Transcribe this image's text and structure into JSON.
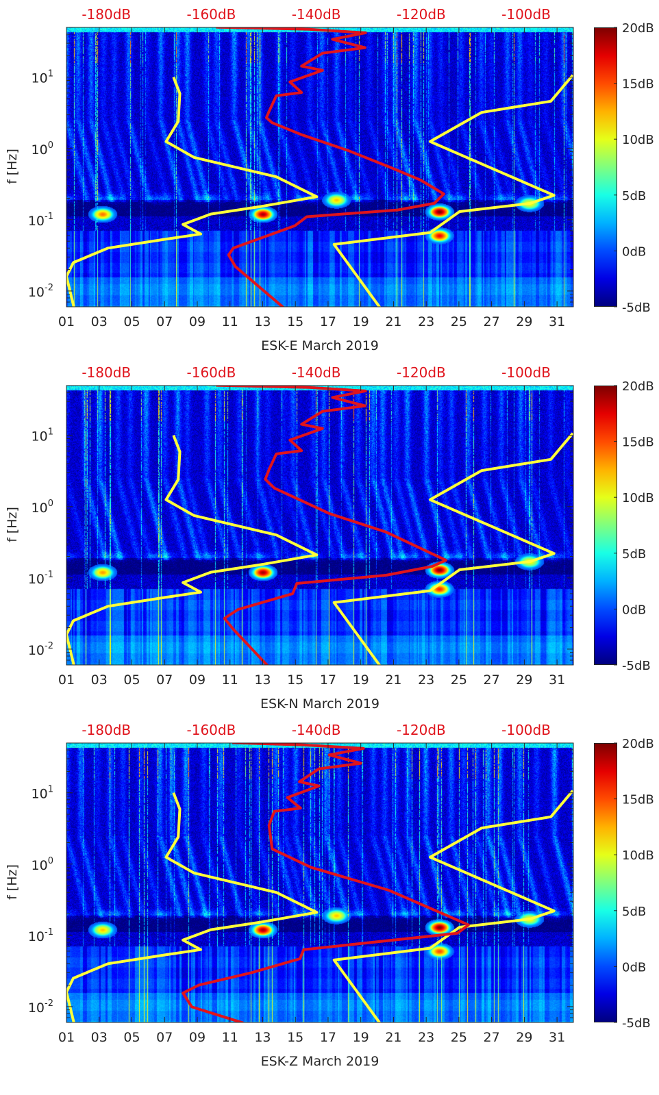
{
  "colors": {
    "low_noise_model": "#ffff3a",
    "high_noise_model": "#ffff3a",
    "station_psd": "#e0141c",
    "top_axis_labels": "#e0141c",
    "axis": "#262626"
  },
  "chart_data": [
    {
      "type": "heatmap",
      "title": "ESK-E March 2019",
      "xlabel": "ESK-E March 2019",
      "ylabel": "f [Hz]",
      "xlim": [
        1,
        32
      ],
      "xtick_values": [
        1,
        3,
        5,
        7,
        9,
        11,
        13,
        15,
        17,
        19,
        21,
        23,
        25,
        27,
        29,
        31
      ],
      "xtick_labels": [
        "01",
        "03",
        "05",
        "07",
        "09",
        "11",
        "13",
        "15",
        "17",
        "19",
        "21",
        "23",
        "25",
        "27",
        "29",
        "31"
      ],
      "yscale": "log",
      "ylim": [
        0.006,
        50
      ],
      "ytick_values": [
        0.01,
        0.1,
        1,
        10
      ],
      "ytick_labels": [
        {
          "base": "10",
          "exp": "-2"
        },
        {
          "base": "10",
          "exp": "-1"
        },
        {
          "base": "10",
          "exp": "0"
        },
        {
          "base": "10",
          "exp": "1"
        }
      ],
      "top_xlim": [
        -187.6,
        -91.0
      ],
      "top_tick_values": [
        -180,
        -160,
        -140,
        -120,
        -100
      ],
      "top_tick_labels": [
        "-180dB",
        "-160dB",
        "-140dB",
        "-120dB",
        "-100dB"
      ],
      "colorbar": {
        "range": [
          -5,
          20
        ],
        "colormap": "jet",
        "tick_values": [
          20,
          15,
          10,
          5,
          0,
          -5
        ],
        "tick_labels": [
          "20dB",
          "15dB",
          "10dB",
          "5dB",
          "0dB",
          "-5dB"
        ]
      },
      "hot_spots": [
        [
          13,
          0.12,
          19
        ],
        [
          23.8,
          0.13,
          20
        ],
        [
          23.8,
          0.06,
          17
        ],
        [
          3.2,
          0.12,
          14
        ],
        [
          17.5,
          0.19,
          12
        ],
        [
          29.3,
          0.17,
          11
        ]
      ],
      "lines": {
        "low_noise_model": [
          [
            -167.2,
            10
          ],
          [
            -166.0,
            5.9
          ],
          [
            -166.3,
            2.4
          ],
          [
            -168.6,
            1.25
          ],
          [
            -163.3,
            0.75
          ],
          [
            -147.6,
            0.4
          ],
          [
            -139.9,
            0.21
          ],
          [
            -150.6,
            0.153
          ],
          [
            -160.1,
            0.12
          ],
          [
            -165.4,
            0.086
          ],
          [
            -162.0,
            0.063
          ],
          [
            -168.9,
            0.053
          ],
          [
            -179.7,
            0.04
          ],
          [
            -186.3,
            0.025
          ],
          [
            -187.6,
            0.016
          ],
          [
            -185.9,
            0.0049
          ]
        ],
        "high_noise_model": [
          [
            -91.1,
            10.7
          ],
          [
            -95.3,
            4.6
          ],
          [
            -108.5,
            3.2
          ],
          [
            -118.3,
            1.25
          ],
          [
            -94.7,
            0.22
          ],
          [
            -99.2,
            0.17
          ],
          [
            -112.7,
            0.13
          ],
          [
            -118.3,
            0.066
          ],
          [
            -136.6,
            0.045
          ],
          [
            -127.1,
            0.0049
          ]
        ],
        "station_psd": [
          [
            -159.1,
            50.5
          ],
          [
            -141.4,
            47
          ],
          [
            -130.6,
            42
          ],
          [
            -136.9,
            34
          ],
          [
            -130.7,
            26
          ],
          [
            -138.8,
            21.7
          ],
          [
            -142.8,
            14.3
          ],
          [
            -138.8,
            12.5
          ],
          [
            -145.0,
            8.6
          ],
          [
            -142.8,
            6.1
          ],
          [
            -147.6,
            5.5
          ],
          [
            -149.0,
            3.3
          ],
          [
            -149.5,
            2.7
          ],
          [
            -148.4,
            2.3
          ],
          [
            -142.8,
            1.56
          ],
          [
            -134.0,
            0.94
          ],
          [
            -125.8,
            0.54
          ],
          [
            -120.1,
            0.36
          ],
          [
            -115.7,
            0.23
          ],
          [
            -117.5,
            0.17
          ],
          [
            -124.5,
            0.137
          ],
          [
            -141.8,
            0.11
          ],
          [
            -144.1,
            0.082
          ],
          [
            -155.8,
            0.04
          ],
          [
            -156.7,
            0.032
          ],
          [
            -155.4,
            0.022
          ],
          [
            -145.0,
            0.0049
          ]
        ]
      }
    },
    {
      "type": "heatmap",
      "title": "ESK-N March 2019",
      "xlabel": "ESK-N March 2019",
      "ylabel": "f [Hz]",
      "xlim": [
        1,
        32
      ],
      "xtick_values": [
        1,
        3,
        5,
        7,
        9,
        11,
        13,
        15,
        17,
        19,
        21,
        23,
        25,
        27,
        29,
        31
      ],
      "xtick_labels": [
        "01",
        "03",
        "05",
        "07",
        "09",
        "11",
        "13",
        "15",
        "17",
        "19",
        "21",
        "23",
        "25",
        "27",
        "29",
        "31"
      ],
      "yscale": "log",
      "ylim": [
        0.006,
        50
      ],
      "ytick_values": [
        0.01,
        0.1,
        1,
        10
      ],
      "ytick_labels": [
        {
          "base": "10",
          "exp": "-2"
        },
        {
          "base": "10",
          "exp": "-1"
        },
        {
          "base": "10",
          "exp": "0"
        },
        {
          "base": "10",
          "exp": "1"
        }
      ],
      "top_xlim": [
        -187.6,
        -91.0
      ],
      "top_tick_values": [
        -180,
        -160,
        -140,
        -120,
        -100
      ],
      "top_tick_labels": [
        "-180dB",
        "-160dB",
        "-140dB",
        "-120dB",
        "-100dB"
      ],
      "colorbar": {
        "range": [
          -5,
          20
        ],
        "colormap": "jet",
        "tick_values": [
          20,
          15,
          10,
          5,
          0,
          -5
        ],
        "tick_labels": [
          "20dB",
          "15dB",
          "10dB",
          "5dB",
          "0dB",
          "-5dB"
        ]
      },
      "hot_spots": [
        [
          13,
          0.12,
          19
        ],
        [
          23.8,
          0.13,
          20
        ],
        [
          23.8,
          0.07,
          16
        ],
        [
          3.2,
          0.12,
          13
        ],
        [
          29.3,
          0.17,
          11
        ]
      ],
      "lines": {
        "low_noise_model": [
          [
            -167.2,
            10
          ],
          [
            -166.0,
            5.9
          ],
          [
            -166.3,
            2.4
          ],
          [
            -168.6,
            1.25
          ],
          [
            -163.3,
            0.75
          ],
          [
            -147.6,
            0.4
          ],
          [
            -139.9,
            0.21
          ],
          [
            -150.6,
            0.153
          ],
          [
            -160.1,
            0.12
          ],
          [
            -165.4,
            0.086
          ],
          [
            -162.0,
            0.063
          ],
          [
            -168.9,
            0.053
          ],
          [
            -179.7,
            0.04
          ],
          [
            -186.3,
            0.025
          ],
          [
            -187.6,
            0.016
          ],
          [
            -185.9,
            0.0049
          ]
        ],
        "high_noise_model": [
          [
            -91.1,
            10.7
          ],
          [
            -95.3,
            4.6
          ],
          [
            -108.5,
            3.2
          ],
          [
            -118.3,
            1.25
          ],
          [
            -94.7,
            0.22
          ],
          [
            -99.2,
            0.17
          ],
          [
            -112.7,
            0.13
          ],
          [
            -118.3,
            0.066
          ],
          [
            -136.6,
            0.045
          ],
          [
            -127.1,
            0.0049
          ]
        ],
        "station_psd": [
          [
            -159.1,
            50.5
          ],
          [
            -141.4,
            47
          ],
          [
            -130.6,
            42
          ],
          [
            -136.9,
            34
          ],
          [
            -130.7,
            26
          ],
          [
            -138.8,
            21.7
          ],
          [
            -142.8,
            14.3
          ],
          [
            -138.8,
            12.5
          ],
          [
            -145.0,
            8.6
          ],
          [
            -142.8,
            6.1
          ],
          [
            -147.6,
            5.5
          ],
          [
            -149.0,
            3.3
          ],
          [
            -149.7,
            2.42
          ],
          [
            -148.0,
            1.82
          ],
          [
            -137.5,
            0.8
          ],
          [
            -126.7,
            0.44
          ],
          [
            -115.3,
            0.177
          ],
          [
            -117.9,
            0.145
          ],
          [
            -126.7,
            0.109
          ],
          [
            -143.7,
            0.0835
          ],
          [
            -144.5,
            0.06
          ],
          [
            -154.9,
            0.036
          ],
          [
            -157.5,
            0.027
          ],
          [
            -155.8,
            0.019
          ],
          [
            -149.3,
            0.0059
          ]
        ]
      }
    },
    {
      "type": "heatmap",
      "title": "ESK-Z March 2019",
      "xlabel": "ESK-Z March 2019",
      "ylabel": "f [Hz]",
      "xlim": [
        1,
        32
      ],
      "xtick_values": [
        1,
        3,
        5,
        7,
        9,
        11,
        13,
        15,
        17,
        19,
        21,
        23,
        25,
        27,
        29,
        31
      ],
      "xtick_labels": [
        "01",
        "03",
        "05",
        "07",
        "09",
        "11",
        "13",
        "15",
        "17",
        "19",
        "21",
        "23",
        "25",
        "27",
        "29",
        "31"
      ],
      "yscale": "log",
      "ylim": [
        0.006,
        50
      ],
      "ytick_values": [
        0.01,
        0.1,
        1,
        10
      ],
      "ytick_labels": [
        {
          "base": "10",
          "exp": "-2"
        },
        {
          "base": "10",
          "exp": "-1"
        },
        {
          "base": "10",
          "exp": "0"
        },
        {
          "base": "10",
          "exp": "1"
        }
      ],
      "top_xlim": [
        -187.6,
        -91.0
      ],
      "top_tick_values": [
        -180,
        -160,
        -140,
        -120,
        -100
      ],
      "top_tick_labels": [
        "-180dB",
        "-160dB",
        "-140dB",
        "-120dB",
        "-100dB"
      ],
      "colorbar": {
        "range": [
          -5,
          20
        ],
        "colormap": "jet",
        "tick_values": [
          20,
          15,
          10,
          5,
          0,
          -5
        ],
        "tick_labels": [
          "20dB",
          "15dB",
          "10dB",
          "5dB",
          "0dB",
          "-5dB"
        ]
      },
      "hot_spots": [
        [
          13,
          0.12,
          19
        ],
        [
          23.8,
          0.13,
          20
        ],
        [
          23.8,
          0.06,
          15
        ],
        [
          3.2,
          0.12,
          12
        ],
        [
          17.5,
          0.19,
          12
        ],
        [
          29.3,
          0.17,
          11
        ]
      ],
      "lines": {
        "low_noise_model": [
          [
            -167.2,
            10
          ],
          [
            -166.0,
            5.9
          ],
          [
            -166.3,
            2.4
          ],
          [
            -168.6,
            1.25
          ],
          [
            -163.3,
            0.75
          ],
          [
            -147.6,
            0.4
          ],
          [
            -139.9,
            0.21
          ],
          [
            -150.6,
            0.153
          ],
          [
            -160.1,
            0.12
          ],
          [
            -165.4,
            0.086
          ],
          [
            -162.0,
            0.063
          ],
          [
            -168.9,
            0.053
          ],
          [
            -179.7,
            0.04
          ],
          [
            -186.3,
            0.025
          ],
          [
            -187.6,
            0.016
          ],
          [
            -185.9,
            0.0049
          ]
        ],
        "high_noise_model": [
          [
            -91.1,
            10.7
          ],
          [
            -95.3,
            4.6
          ],
          [
            -108.5,
            3.2
          ],
          [
            -118.3,
            1.25
          ],
          [
            -94.7,
            0.22
          ],
          [
            -99.2,
            0.17
          ],
          [
            -112.7,
            0.13
          ],
          [
            -118.3,
            0.066
          ],
          [
            -136.6,
            0.045
          ],
          [
            -127.1,
            0.0049
          ]
        ],
        "station_psd": [
          [
            -156.0,
            50.5
          ],
          [
            -142.5,
            47
          ],
          [
            -131.0,
            42
          ],
          [
            -137.5,
            34
          ],
          [
            -131.5,
            26
          ],
          [
            -139.5,
            21.7
          ],
          [
            -143.2,
            14.3
          ],
          [
            -139.5,
            12.5
          ],
          [
            -145.5,
            8.6
          ],
          [
            -143.0,
            6.1
          ],
          [
            -148.0,
            5.5
          ],
          [
            -149.0,
            3.5
          ],
          [
            -148.4,
            1.63
          ],
          [
            -141.0,
            0.9
          ],
          [
            -126.2,
            0.43
          ],
          [
            -111.0,
            0.14
          ],
          [
            -113.1,
            0.107
          ],
          [
            -142.4,
            0.063
          ],
          [
            -143.1,
            0.047
          ],
          [
            -152.3,
            0.03
          ],
          [
            -162.4,
            0.02
          ],
          [
            -165.4,
            0.0155
          ],
          [
            -163.7,
            0.0099
          ],
          [
            -153.9,
            0.0059
          ]
        ]
      }
    }
  ]
}
